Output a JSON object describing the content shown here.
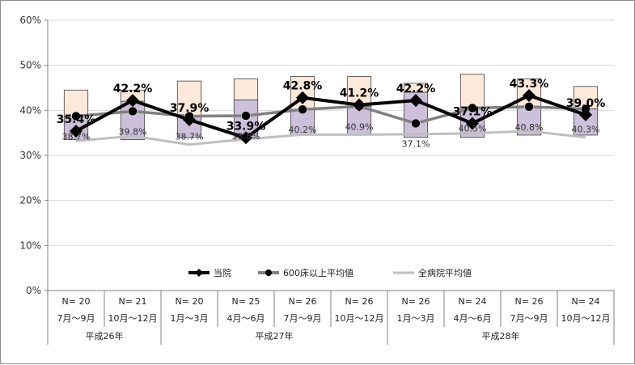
{
  "chart_data": {
    "type": "line",
    "ylim": [
      0,
      60
    ],
    "yticks": [
      "0%",
      "10%",
      "20%",
      "30%",
      "40%",
      "50%",
      "60%"
    ],
    "categories": [
      {
        "n": "N= 20",
        "period": "7月～9月"
      },
      {
        "n": "N= 21",
        "period": "10月～12月"
      },
      {
        "n": "N= 20",
        "period": "1月～3月"
      },
      {
        "n": "N= 25",
        "period": "4月～6月"
      },
      {
        "n": "N= 26",
        "period": "7月～9月"
      },
      {
        "n": "N= 26",
        "period": "10月～12月"
      },
      {
        "n": "N= 26",
        "period": "1月～3月"
      },
      {
        "n": "N= 24",
        "period": "4月～6月"
      },
      {
        "n": "N= 26",
        "period": "7月～9月"
      },
      {
        "n": "N= 24",
        "period": "10月～12月"
      }
    ],
    "year_groups": [
      {
        "label": "平成26年",
        "count": 2
      },
      {
        "label": "平成27年",
        "count": 4
      },
      {
        "label": "平成28年",
        "count": 4
      }
    ],
    "range_boxes": {
      "upper": [
        44.5,
        44.5,
        46.5,
        47.0,
        47.5,
        47.5,
        46.0,
        48.0,
        47.0,
        45.3
      ],
      "median": [
        38.7,
        42.0,
        38.7,
        42.3,
        40.2,
        40.9,
        44.0,
        40.8,
        40.8,
        40.3
      ],
      "lower": [
        33.5,
        33.5,
        34.0,
        34.0,
        34.5,
        34.5,
        34.0,
        34.0,
        34.5,
        34.5
      ],
      "upper_color": "#fde9d9",
      "lower_color": "#ccc0da"
    },
    "series": [
      {
        "name": "当院",
        "values": [
          35.4,
          42.2,
          37.9,
          33.9,
          42.8,
          41.2,
          42.2,
          37.1,
          43.3,
          39.0
        ],
        "labels": [
          "35.4%",
          "42.2%",
          "37.9%",
          "33.9%",
          "42.8%",
          "41.2%",
          "42.2%",
          "37.1%",
          "43.3%",
          "39.0%"
        ],
        "color": "#000000"
      },
      {
        "name": "600床以上平均値",
        "values": [
          38.7,
          39.8,
          38.7,
          38.8,
          40.2,
          40.9,
          37.1,
          40.5,
          40.8,
          40.3
        ],
        "labels": [
          "38.7%",
          "39.8%",
          "38.7%",
          "38.8%",
          "40.2%",
          "40.9%",
          "37.1%",
          "40.5%",
          "40.8%",
          "40.3%"
        ],
        "color": "#808080"
      },
      {
        "name": "全病院平均値",
        "values": [
          33.2,
          34.3,
          32.4,
          33.6,
          34.6,
          34.6,
          34.7,
          34.9,
          35.4,
          34.0
        ],
        "color": "#bfbfbf"
      }
    ]
  }
}
